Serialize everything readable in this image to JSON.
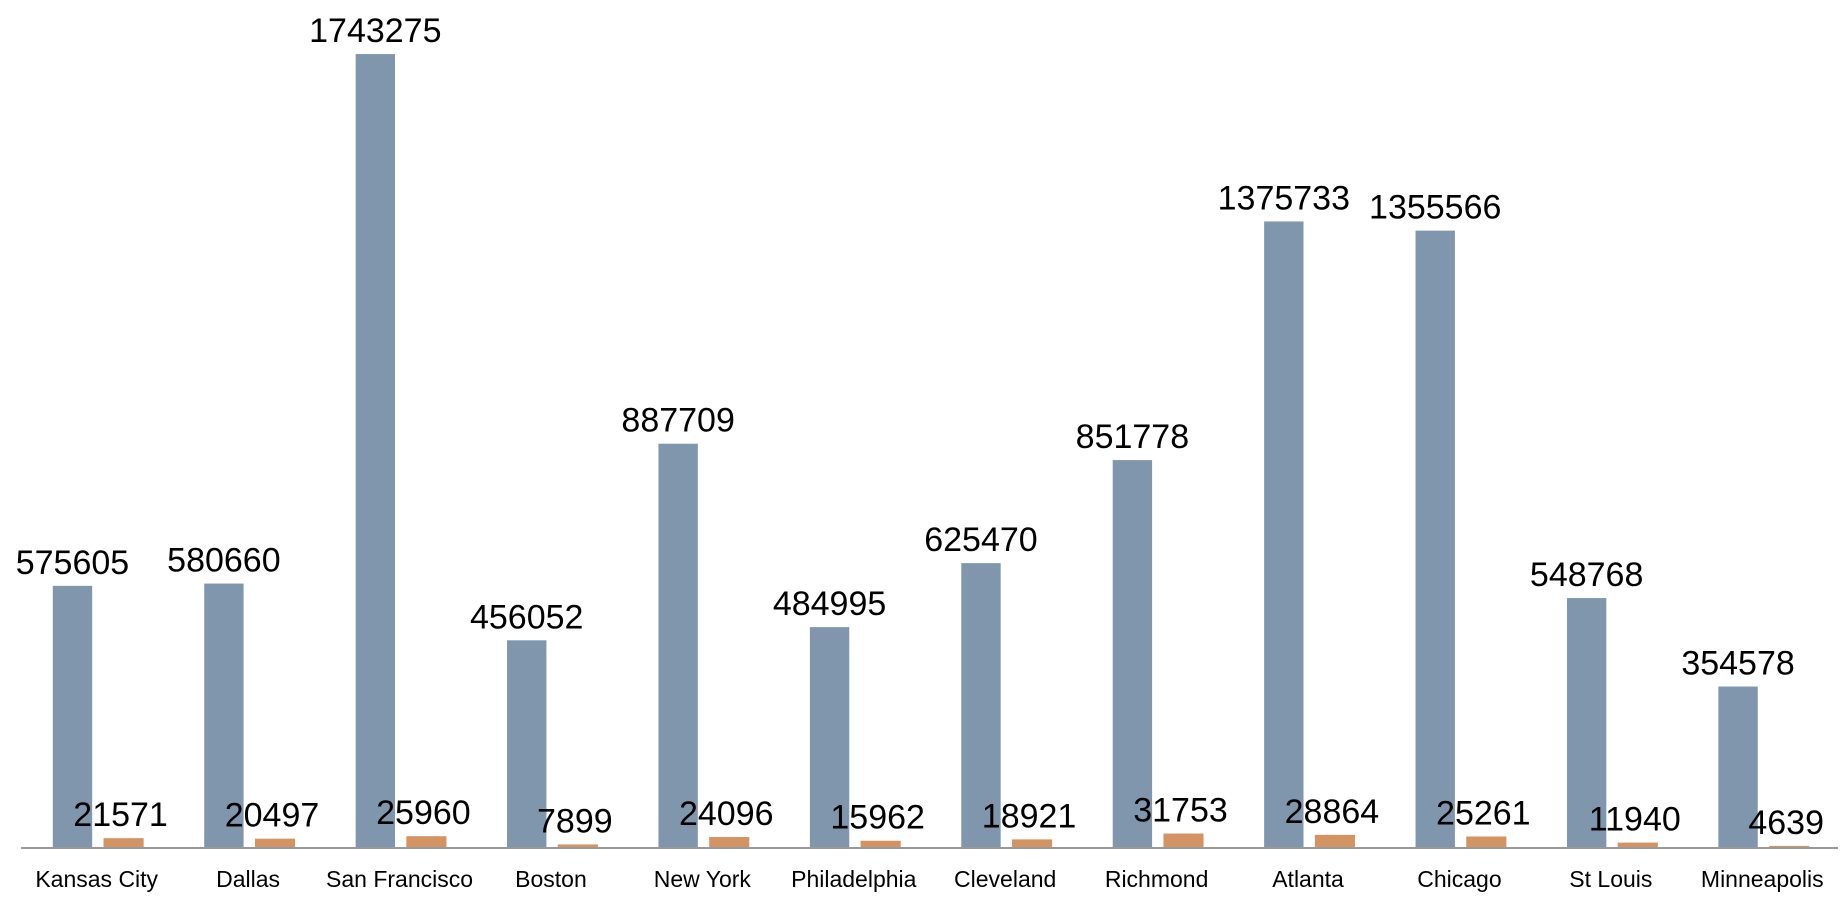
{
  "chart_data": {
    "type": "bar",
    "categories": [
      "Kansas City",
      "Dallas",
      "San Francisco",
      "Boston",
      "New York",
      "Philadelphia",
      "Cleveland",
      "Richmond",
      "Atlanta",
      "Chicago",
      "St Louis",
      "Minneapolis"
    ],
    "series": [
      {
        "color": "#7f96ad",
        "values": [
          575605,
          580660,
          1743275,
          456052,
          887709,
          484995,
          625470,
          851778,
          1375733,
          1355566,
          548768,
          354578
        ]
      },
      {
        "color": "#d49362",
        "values": [
          21571,
          20497,
          25960,
          7899,
          24096,
          15962,
          18921,
          31753,
          28864,
          25261,
          11940,
          4639
        ]
      }
    ],
    "ylim": [
      0,
      1862000
    ]
  }
}
